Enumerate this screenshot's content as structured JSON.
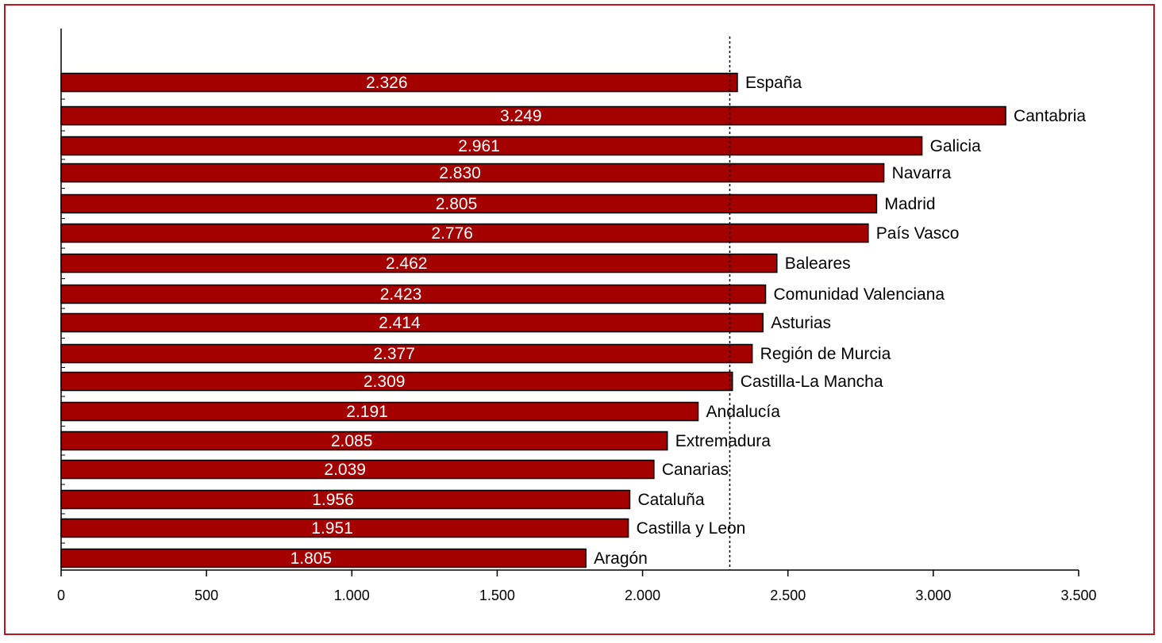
{
  "chart_data": {
    "type": "bar",
    "orientation": "horizontal",
    "title": "",
    "xlabel": "",
    "ylabel": "",
    "xlim": [
      0,
      3500
    ],
    "x_ticks": [
      0,
      500,
      1000,
      1500,
      2000,
      2500,
      3000,
      3500
    ],
    "x_tick_labels": [
      "0",
      "500",
      "1.000",
      "1.500",
      "2.000",
      "2.500",
      "3.000",
      "3.500"
    ],
    "reference_line": 2300,
    "grid": false,
    "legend": "none",
    "bar_color": "#a50000",
    "frame_color": "#c0141e",
    "categories": [
      "España",
      "Cantabria",
      "Galicia",
      "Navarra",
      "Madrid",
      "País Vasco",
      "Baleares",
      "Comunidad Valenciana",
      "Asturias",
      "Región de Murcia",
      "Castilla-La Mancha",
      "Andalucía",
      "Extremadura",
      "Canarias",
      "Cataluña",
      "Castilla y Leon",
      "Aragón"
    ],
    "values": [
      2326,
      3249,
      2961,
      2830,
      2805,
      2776,
      2462,
      2423,
      2414,
      2377,
      2309,
      2191,
      2085,
      2039,
      1956,
      1951,
      1805
    ],
    "value_labels": [
      "2.326",
      "3.249",
      "2.961",
      "2.830",
      "2.805",
      "2.776",
      "2.462",
      "2.423",
      "2.414",
      "2.377",
      "2.309",
      "2.191",
      "2.085",
      "2.039",
      "1.956",
      "1.951",
      "1.805"
    ]
  }
}
